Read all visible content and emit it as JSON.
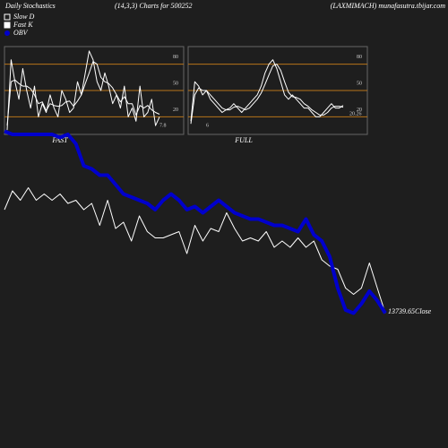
{
  "header": {
    "left": "Daily Stochastics",
    "center": "(14,3,3) Charts for 500252",
    "right": "(LAXMIMACH) munafasutra.tbijar.com"
  },
  "chart_data": [
    {
      "type": "line",
      "title": "FAST",
      "ylim": [
        0,
        100
      ],
      "yticks": [
        20,
        50,
        80
      ],
      "grid": true,
      "grid_color": "#b8741a",
      "annotations": [
        "7.8"
      ],
      "series": [
        {
          "name": "Fast K",
          "color": "#ffffff",
          "values": [
            5,
            85,
            60,
            40,
            75,
            50,
            30,
            55,
            20,
            35,
            25,
            45,
            30,
            20,
            50,
            40,
            25,
            30,
            60,
            45,
            70,
            95,
            85,
            60,
            50,
            70,
            55,
            35,
            45,
            30,
            55,
            20,
            30,
            15,
            55,
            20,
            25,
            40,
            10,
            20
          ]
        },
        {
          "name": "Slow D",
          "color": "#ffffff",
          "values": [
            10,
            60,
            62,
            58,
            55,
            55,
            52,
            45,
            35,
            37,
            27,
            35,
            33,
            32,
            33,
            37,
            38,
            32,
            38,
            45,
            58,
            70,
            83,
            80,
            65,
            60,
            58,
            53,
            45,
            37,
            43,
            35,
            35,
            22,
            33,
            30,
            33,
            28,
            25,
            23
          ]
        }
      ]
    },
    {
      "type": "line",
      "title": "FULL",
      "ylim": [
        0,
        100
      ],
      "yticks": [
        20,
        50,
        80
      ],
      "grid": true,
      "grid_color": "#b8741a",
      "annotations": [
        "6",
        "20.26"
      ],
      "series": [
        {
          "color": "#ffffff",
          "values": [
            15,
            60,
            55,
            45,
            50,
            40,
            35,
            30,
            25,
            28,
            30,
            35,
            30,
            25,
            30,
            35,
            40,
            45,
            55,
            70,
            80,
            85,
            75,
            60,
            45,
            40,
            45,
            40,
            35,
            30,
            30,
            25,
            20,
            20,
            25,
            30,
            35,
            30,
            30,
            33
          ]
        },
        {
          "color": "#ffffff",
          "values": [
            12,
            45,
            53,
            50,
            50,
            45,
            40,
            35,
            30,
            28,
            28,
            31,
            32,
            30,
            28,
            30,
            35,
            40,
            47,
            57,
            68,
            78,
            80,
            73,
            60,
            48,
            43,
            42,
            40,
            35,
            32,
            28,
            25,
            22,
            22,
            25,
            30,
            32,
            32,
            31
          ]
        }
      ]
    },
    {
      "type": "line",
      "ylim": [
        0,
        101
      ],
      "annotations": [
        "13739.65Close"
      ],
      "series": [
        {
          "color": "#ffffff",
          "values": [
            76,
            82,
            79,
            83,
            79,
            81,
            79,
            81,
            78,
            79,
            76,
            78,
            71,
            79,
            70,
            72,
            66,
            74,
            69,
            67,
            67,
            68,
            69,
            62,
            71,
            66,
            70,
            69,
            75,
            70,
            66,
            67,
            66,
            69,
            64,
            66,
            64,
            67,
            64,
            66,
            60,
            58,
            57,
            51,
            49,
            51,
            59,
            51,
            43
          ]
        },
        {
          "name": "OBV",
          "color": "#0000cc",
          "values": [
            101,
            100,
            100,
            100,
            100,
            100,
            100,
            99,
            100,
            97,
            90,
            89,
            87,
            87,
            84,
            81,
            80,
            79,
            78,
            76,
            79,
            81,
            79,
            76,
            77,
            75,
            77,
            79,
            77,
            75,
            74,
            73,
            73,
            72,
            71,
            71,
            70,
            69,
            73,
            68,
            66,
            61,
            51,
            44,
            43,
            46,
            50,
            47,
            43
          ]
        }
      ]
    }
  ]
}
